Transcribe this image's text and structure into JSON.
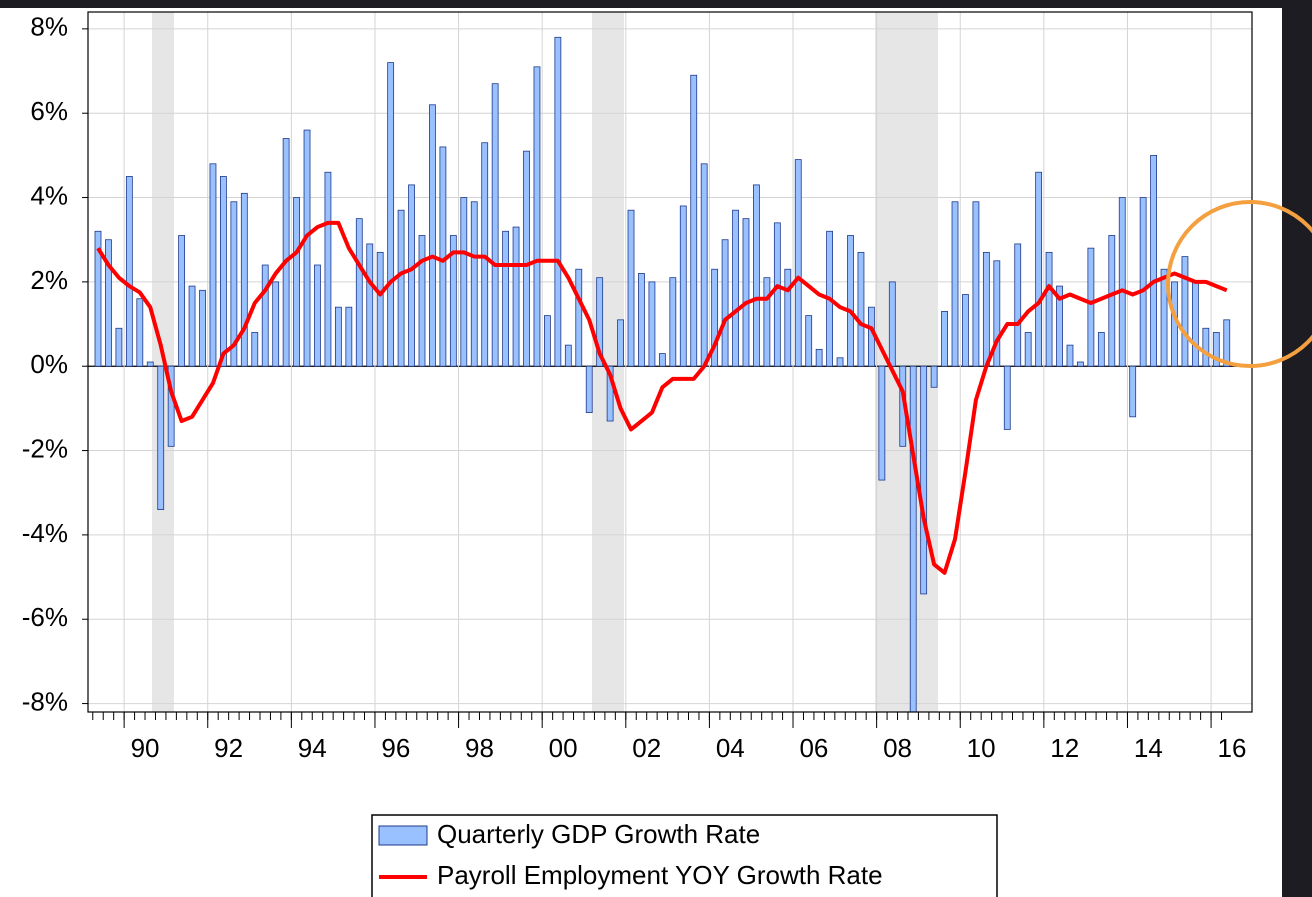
{
  "chart_data": {
    "type": "bar_line",
    "categories": [
      null,
      null,
      null,
      null,
      "90",
      null,
      null,
      null,
      null,
      null,
      null,
      null,
      "92",
      null,
      null,
      null,
      null,
      null,
      null,
      null,
      "94",
      null,
      null,
      null,
      null,
      null,
      null,
      null,
      "96",
      null,
      null,
      null,
      null,
      null,
      null,
      null,
      "98",
      null,
      null,
      null,
      null,
      null,
      null,
      null,
      "00",
      null,
      null,
      null,
      null,
      null,
      null,
      null,
      "02",
      null,
      null,
      null,
      null,
      null,
      null,
      null,
      "04",
      null,
      null,
      null,
      null,
      null,
      null,
      null,
      "06",
      null,
      null,
      null,
      null,
      null,
      null,
      null,
      "08",
      null,
      null,
      null,
      null,
      null,
      null,
      null,
      "10",
      null,
      null,
      null,
      null,
      null,
      null,
      null,
      "12",
      null,
      null,
      null,
      null,
      null,
      null,
      null,
      "14",
      null,
      null,
      null,
      null,
      null,
      null,
      null,
      "16"
    ],
    "series": [
      {
        "name": "Quarterly GDP Growth Rate",
        "kind": "bar",
        "color": "#99c0ff",
        "edge": "#1f3a8a",
        "values": [
          3.2,
          3.0,
          0.9,
          4.5,
          1.6,
          0.1,
          -3.4,
          -1.9,
          3.1,
          1.9,
          1.8,
          4.8,
          4.5,
          3.9,
          4.1,
          0.8,
          2.4,
          2.0,
          5.4,
          4.0,
          5.6,
          2.4,
          4.6,
          1.4,
          1.4,
          3.5,
          2.9,
          2.7,
          7.2,
          3.7,
          4.3,
          3.1,
          6.2,
          5.2,
          3.1,
          4.0,
          3.9,
          5.3,
          6.7,
          3.2,
          3.3,
          5.1,
          7.1,
          1.2,
          7.8,
          0.5,
          2.3,
          -1.1,
          2.1,
          -1.3,
          1.1,
          3.7,
          2.2,
          2.0,
          0.3,
          2.1,
          3.8,
          6.9,
          4.8,
          2.3,
          3.0,
          3.7,
          3.5,
          4.3,
          2.1,
          3.4,
          2.3,
          4.9,
          1.2,
          0.4,
          3.2,
          0.2,
          3.1,
          2.7,
          1.4,
          -2.7,
          2.0,
          -1.9,
          -8.2,
          -5.4,
          -0.5,
          1.3,
          3.9,
          1.7,
          3.9,
          2.7,
          2.5,
          -1.5,
          2.9,
          0.8,
          4.6,
          2.7,
          1.9,
          0.5,
          0.1,
          2.8,
          0.8,
          3.1,
          4.0,
          -1.2,
          4.0,
          5.0,
          2.3,
          2.0,
          2.6,
          2.0,
          0.9,
          0.8,
          1.1
        ]
      },
      {
        "name": "Payroll Employment YOY Growth Rate",
        "kind": "line",
        "color": "#ff0000",
        "values": [
          2.8,
          2.4,
          2.1,
          1.9,
          1.75,
          1.4,
          0.5,
          -0.6,
          -1.3,
          -1.2,
          -0.8,
          -0.4,
          0.3,
          0.5,
          0.9,
          1.5,
          1.8,
          2.2,
          2.5,
          2.7,
          3.1,
          3.3,
          3.4,
          3.4,
          2.8,
          2.4,
          2.0,
          1.7,
          2.0,
          2.2,
          2.3,
          2.5,
          2.6,
          2.5,
          2.7,
          2.7,
          2.6,
          2.6,
          2.4,
          2.4,
          2.4,
          2.4,
          2.5,
          2.5,
          2.5,
          2.1,
          1.6,
          1.1,
          0.3,
          -0.2,
          -1.0,
          -1.5,
          -1.3,
          -1.1,
          -0.5,
          -0.3,
          -0.3,
          -0.3,
          0.0,
          0.5,
          1.1,
          1.3,
          1.5,
          1.6,
          1.6,
          1.9,
          1.8,
          2.1,
          1.9,
          1.7,
          1.6,
          1.4,
          1.3,
          1.0,
          0.9,
          0.4,
          -0.1,
          -0.6,
          -2.1,
          -3.6,
          -4.7,
          -4.9,
          -4.1,
          -2.5,
          -0.8,
          0.0,
          0.6,
          1.0,
          1.0,
          1.3,
          1.5,
          1.9,
          1.6,
          1.7,
          1.6,
          1.5,
          1.6,
          1.7,
          1.8,
          1.7,
          1.8,
          2.0,
          2.1,
          2.2,
          2.1,
          2.0,
          2.0,
          1.9,
          1.8
        ]
      }
    ],
    "ylim": [
      -8.2,
      8.4
    ],
    "yticks": [
      {
        "value": 8,
        "label": "8%"
      },
      {
        "value": 6,
        "label": "6%"
      },
      {
        "value": 4,
        "label": "4%"
      },
      {
        "value": 2,
        "label": "2%"
      },
      {
        "value": 0,
        "label": "0%"
      },
      {
        "value": -2,
        "label": "-2%"
      },
      {
        "value": -4,
        "label": "-4%"
      },
      {
        "value": -6,
        "label": "-6%"
      },
      {
        "value": -8,
        "label": "-8%"
      }
    ],
    "grid": true,
    "legend": "bottom"
  }
}
